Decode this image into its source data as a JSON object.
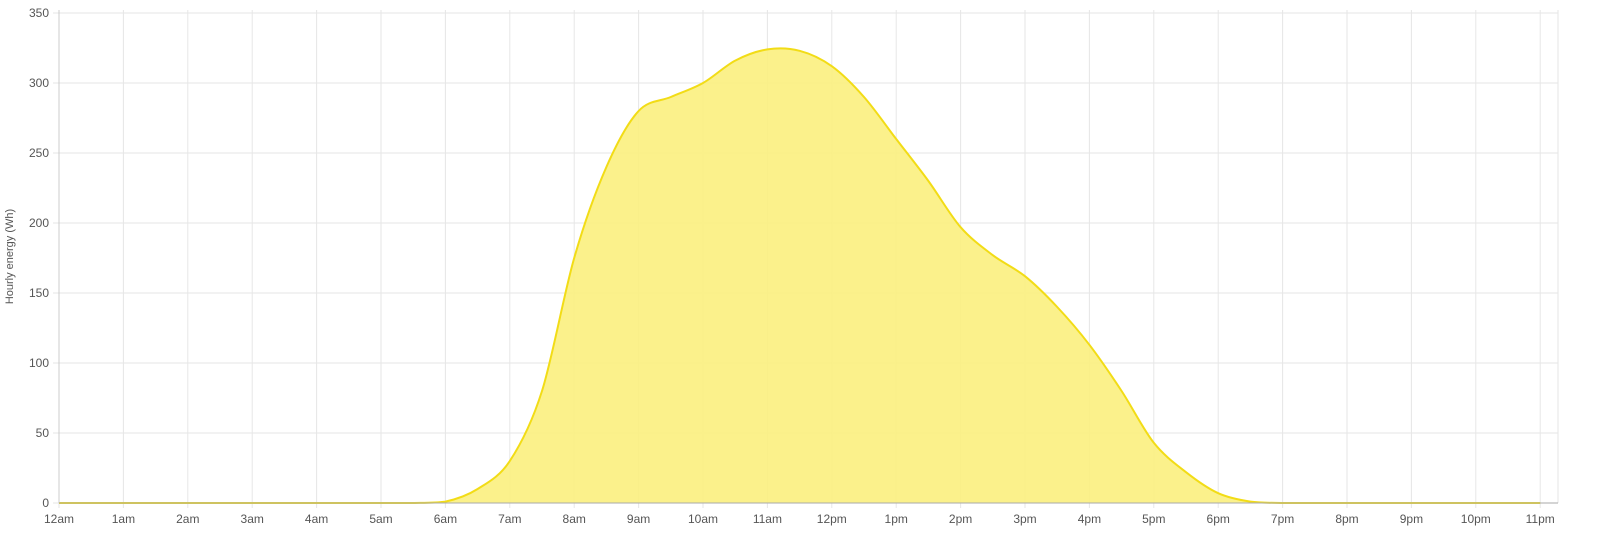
{
  "chart_data": {
    "type": "area",
    "title": "",
    "xlabel": "",
    "ylabel": "Hourly energy (Wh)",
    "x_tick_labels": [
      "12am",
      "1am",
      "2am",
      "3am",
      "4am",
      "5am",
      "6am",
      "7am",
      "8am",
      "9am",
      "10am",
      "11am",
      "12pm",
      "1pm",
      "2pm",
      "3pm",
      "4pm",
      "5pm",
      "6pm",
      "7pm",
      "8pm",
      "9pm",
      "10pm",
      "11pm"
    ],
    "y_ticks": [
      0,
      50,
      100,
      150,
      200,
      250,
      300,
      350
    ],
    "xlim": [
      0,
      23.3
    ],
    "ylim": [
      0,
      350
    ],
    "grid": true,
    "legend": "none",
    "colors": {
      "line": "#f2dc16",
      "fill": "#fbef7e",
      "grid": "#e6e6e6",
      "axis": "#cccccc",
      "text": "#555555"
    },
    "series": [
      {
        "x": [
          0,
          1,
          2,
          3,
          4,
          5,
          5.5,
          6,
          6.5,
          7,
          7.5,
          8,
          8.5,
          9,
          9.5,
          10,
          10.5,
          11,
          11.5,
          12,
          12.5,
          13,
          13.5,
          14,
          14.5,
          15,
          15.5,
          16,
          16.5,
          17,
          17.5,
          18,
          18.5,
          19,
          19.5,
          20,
          21,
          22,
          23
        ],
        "values": [
          0,
          0,
          0,
          0,
          0,
          0,
          0,
          1,
          10,
          30,
          80,
          175,
          240,
          280,
          290,
          300,
          316,
          324,
          323,
          312,
          290,
          260,
          230,
          197,
          177,
          162,
          140,
          113,
          80,
          43,
          22,
          7,
          1,
          0,
          0,
          0,
          0,
          0,
          0
        ]
      }
    ]
  }
}
